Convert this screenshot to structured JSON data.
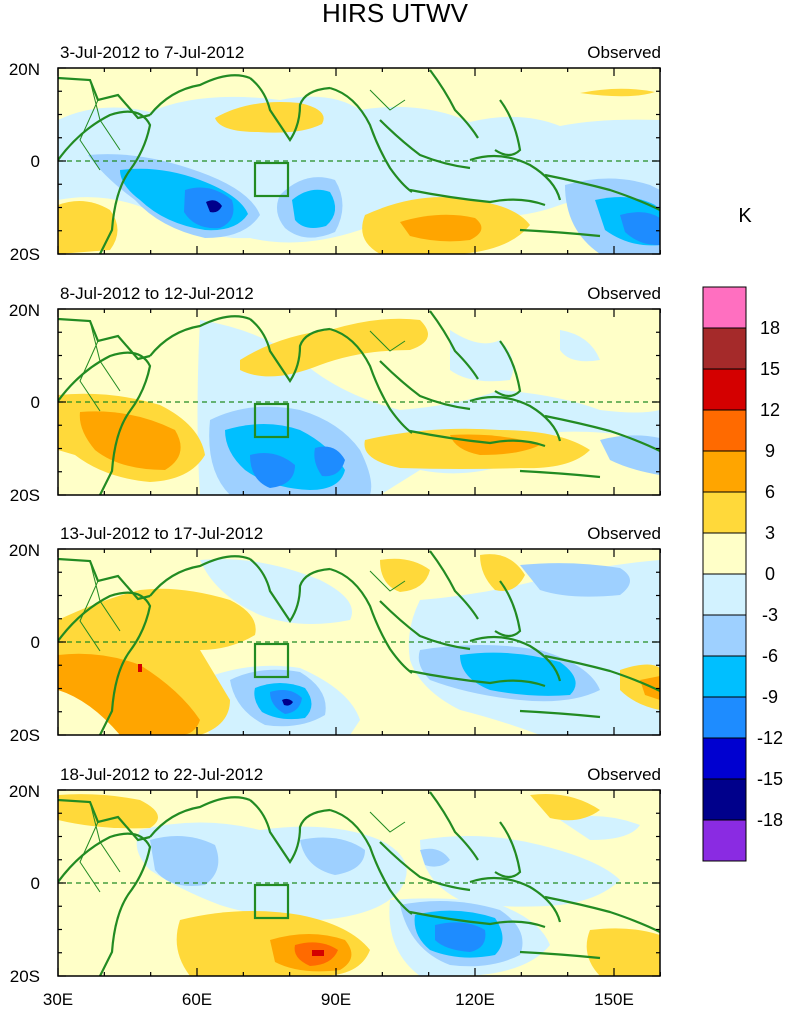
{
  "title": "HIRS UTWV",
  "unit_label": "K",
  "panels": [
    {
      "period": "3-Jul-2012 to 7-Jul-2012",
      "label": "Observed"
    },
    {
      "period": "8-Jul-2012 to 12-Jul-2012",
      "label": "Observed"
    },
    {
      "period": "13-Jul-2012 to 17-Jul-2012",
      "label": "Observed"
    },
    {
      "period": "18-Jul-2012 to 22-Jul-2012",
      "label": "Observed"
    }
  ],
  "lat_labels": [
    "20N",
    "0",
    "20S"
  ],
  "lon_labels": [
    "30E",
    "60E",
    "90E",
    "120E",
    "150E"
  ],
  "colorbar": {
    "labels": [
      "18",
      "15",
      "12",
      "9",
      "6",
      "3",
      "0",
      "-3",
      "-6",
      "-9",
      "-12",
      "-15",
      "-18"
    ],
    "colors": [
      "#ff6fc0",
      "#a52a2a",
      "#d40000",
      "#ff6a00",
      "#ffa500",
      "#ffd93a",
      "#ffffc8",
      "#d2f2ff",
      "#9ed0ff",
      "#00bfff",
      "#1e8cff",
      "#0000d0",
      "#00008b",
      "#8a2be2"
    ]
  }
}
